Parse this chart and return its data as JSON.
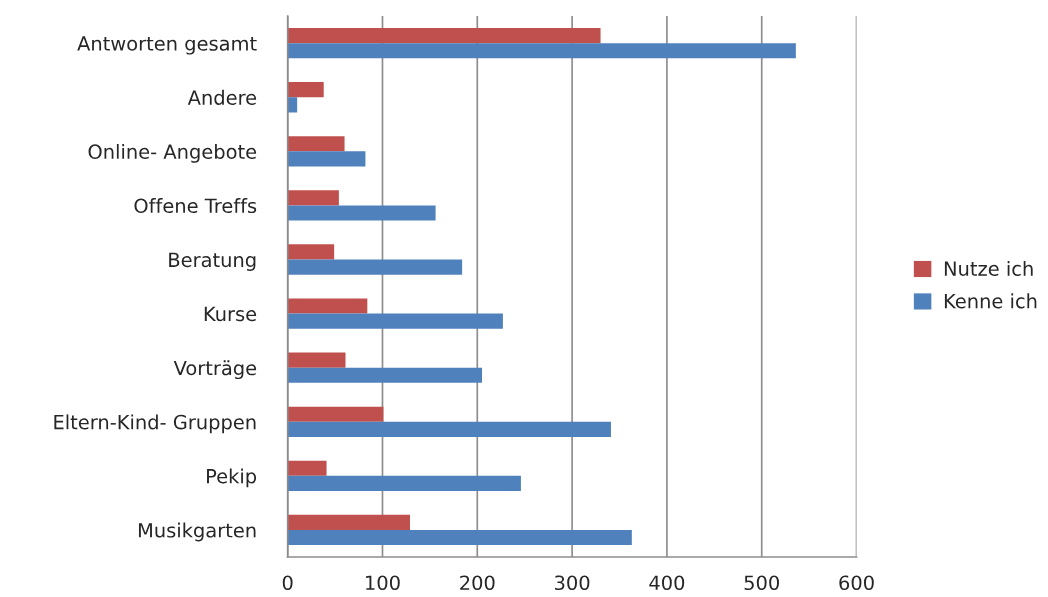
{
  "chart_data": {
    "type": "bar",
    "orientation": "horizontal",
    "categories": [
      "Antworten gesamt",
      "Andere",
      "Online- Angebote",
      "Offene Treffs",
      "Beratung",
      "Kurse",
      "Vorträge",
      "Eltern-Kind- Gruppen",
      "Pekip",
      "Musikgarten"
    ],
    "series": [
      {
        "name": "Nutze ich",
        "color": "#c0504d",
        "values": [
          330,
          38,
          60,
          54,
          49,
          84,
          61,
          101,
          41,
          129
        ]
      },
      {
        "name": "Kenne ich",
        "color": "#4f81bd",
        "values": [
          536,
          10,
          82,
          156,
          184,
          227,
          205,
          341,
          246,
          363
        ]
      }
    ],
    "xlim": [
      0,
      600
    ],
    "xticks": [
      0,
      100,
      200,
      300,
      400,
      500,
      600
    ],
    "grid": "x",
    "legend": "right"
  }
}
